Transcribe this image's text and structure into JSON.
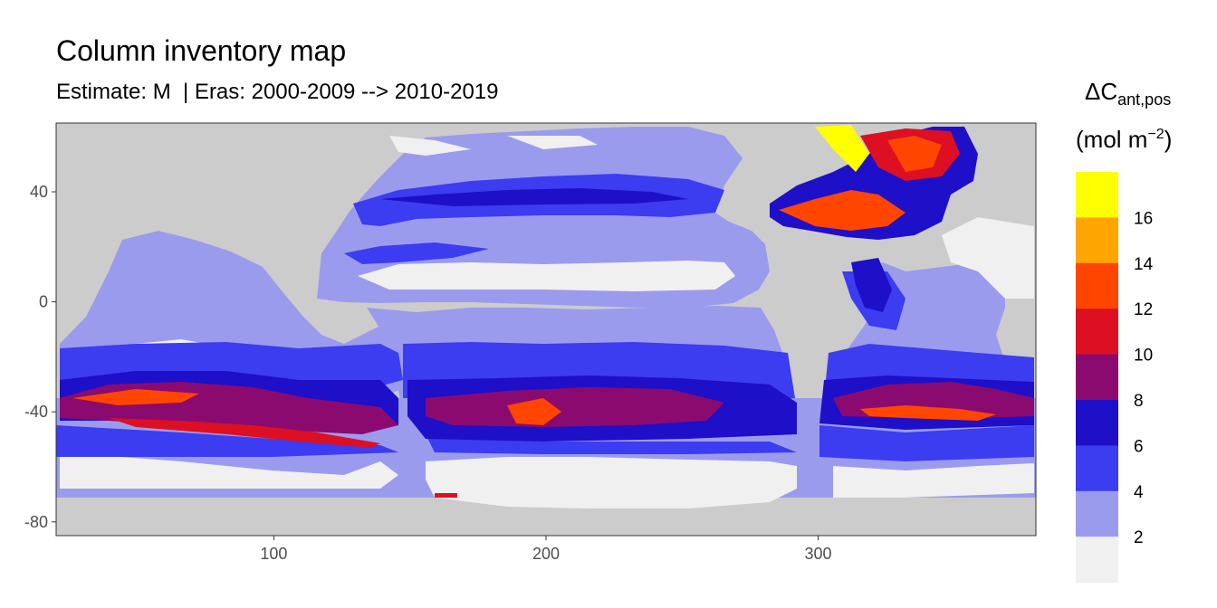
{
  "chart_data": {
    "type": "heatmap",
    "title": "Column inventory map",
    "subtitle": "Estimate: M  | Eras: 2000-2009 --> 2010-2019",
    "xlabel": "",
    "ylabel": "",
    "xlim": [
      20,
      380
    ],
    "ylim": [
      -85,
      65
    ],
    "x_ticks": [
      100,
      200,
      300
    ],
    "y_ticks": [
      40,
      0,
      -40,
      -80
    ],
    "grid": false,
    "legend": {
      "title_main": "ΔC",
      "title_sub": "ant,pos",
      "unit_prefix": "(mol m",
      "unit_exp": "−2",
      "unit_suffix": ")",
      "position": "right",
      "breaks": [
        16,
        14,
        12,
        10,
        8,
        6,
        4,
        2
      ],
      "bins": [
        {
          "range": [
            16,
            18
          ],
          "color": "#ffff00"
        },
        {
          "range": [
            14,
            16
          ],
          "color": "#ffa500"
        },
        {
          "range": [
            12,
            14
          ],
          "color": "#ff4500"
        },
        {
          "range": [
            10,
            12
          ],
          "color": "#dc0f23"
        },
        {
          "range": [
            8,
            10
          ],
          "color": "#8b0a6f"
        },
        {
          "range": [
            6,
            8
          ],
          "color": "#1e0fc8"
        },
        {
          "range": [
            4,
            6
          ],
          "color": "#3c3cf0"
        },
        {
          "range": [
            2,
            4
          ],
          "color": "#9b9bee"
        },
        {
          "range": [
            0,
            2
          ],
          "color": "#f0f0f0"
        }
      ]
    },
    "colors": {
      "land": "#cccccc",
      "panel_border": "#333333"
    }
  }
}
